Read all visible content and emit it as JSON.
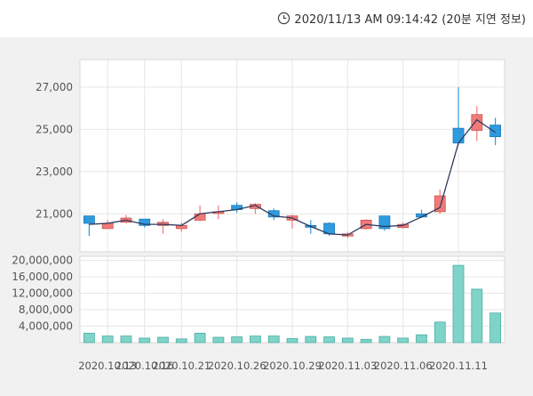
{
  "header": {
    "timestamp": "2020/11/13 AM 09:14:42 (20분 지연 정보)",
    "icon": "clock-icon"
  },
  "chart_data": [
    {
      "type": "candlestick",
      "title": "",
      "ylim": [
        19200,
        28300
      ],
      "y_ticks": [
        21000,
        23000,
        25000,
        27000
      ],
      "y_tick_labels": [
        "21,000",
        "23,000",
        "25,000",
        "27,000"
      ],
      "grid": true,
      "colors": {
        "up": "#f07a78",
        "down": "#2e9be0",
        "ma_line": "#2d3a5e"
      },
      "candles": [
        {
          "open": 20900,
          "close": 20550,
          "high": 20900,
          "low": 19950
        },
        {
          "open": 20300,
          "close": 20550,
          "high": 20700,
          "low": 20300
        },
        {
          "open": 20600,
          "close": 20800,
          "high": 20950,
          "low": 20550
        },
        {
          "open": 20750,
          "close": 20450,
          "high": 20750,
          "low": 20350
        },
        {
          "open": 20450,
          "close": 20600,
          "high": 20750,
          "low": 20050
        },
        {
          "open": 20300,
          "close": 20450,
          "high": 20600,
          "low": 20150
        },
        {
          "open": 20700,
          "close": 21000,
          "high": 21400,
          "low": 20650
        },
        {
          "open": 21050,
          "close": 21100,
          "high": 21400,
          "low": 20750
        },
        {
          "open": 21400,
          "close": 21200,
          "high": 21550,
          "low": 21050
        },
        {
          "open": 21250,
          "close": 21450,
          "high": 21500,
          "low": 21000
        },
        {
          "open": 21150,
          "close": 20850,
          "high": 21250,
          "low": 20700
        },
        {
          "open": 20700,
          "close": 20900,
          "high": 20950,
          "low": 20300
        },
        {
          "open": 20450,
          "close": 20400,
          "high": 20700,
          "low": 20050
        },
        {
          "open": 20550,
          "close": 20050,
          "high": 20600,
          "low": 19950
        },
        {
          "open": 19950,
          "close": 20050,
          "high": 20150,
          "low": 19850
        },
        {
          "open": 20300,
          "close": 20700,
          "high": 20750,
          "low": 20250
        },
        {
          "open": 20900,
          "close": 20300,
          "high": 20900,
          "low": 20200
        },
        {
          "open": 20350,
          "close": 20500,
          "high": 20600,
          "low": 20300
        },
        {
          "open": 21000,
          "close": 20850,
          "high": 21200,
          "low": 20800
        },
        {
          "open": 21100,
          "close": 21850,
          "high": 22150,
          "low": 21000
        },
        {
          "open": 25050,
          "close": 24350,
          "high": 27000,
          "low": 24250
        },
        {
          "open": 24950,
          "close": 25700,
          "high": 26100,
          "low": 24450
        },
        {
          "open": 25200,
          "close": 24650,
          "high": 25550,
          "low": 24250
        }
      ],
      "ma_line": [
        20500,
        20550,
        20700,
        20500,
        20500,
        20450,
        21000,
        21100,
        21200,
        21400,
        20900,
        20800,
        20400,
        20050,
        20000,
        20500,
        20400,
        20450,
        20850,
        21300,
        24350,
        25450,
        24850
      ]
    },
    {
      "type": "bar",
      "title": "",
      "ylim": [
        0,
        21000000
      ],
      "y_ticks": [
        4000000,
        8000000,
        12000000,
        16000000,
        20000000
      ],
      "y_tick_labels": [
        "4,000,000",
        "8,000,000",
        "12,000,000",
        "16,000,000",
        "20,000,000"
      ],
      "grid": true,
      "bar_color": "#80d3c8",
      "bar_border": "#4ab0a4",
      "values": [
        2300000,
        1600000,
        1600000,
        1100000,
        1300000,
        900000,
        2300000,
        1300000,
        1400000,
        1600000,
        1600000,
        1000000,
        1500000,
        1400000,
        1100000,
        800000,
        1500000,
        1100000,
        1900000,
        5000000,
        18800000,
        13000000,
        7200000
      ]
    }
  ],
  "x_axis": {
    "tick_labels": [
      "2020.10.13",
      "2020.10.16",
      "2020.10.21",
      "2020.10.26",
      "2020.10.29",
      "2020.11.03",
      "2020.11.06",
      "2020.11.11"
    ],
    "tick_indices": [
      1,
      3,
      5,
      8,
      11,
      14,
      17,
      20
    ]
  }
}
